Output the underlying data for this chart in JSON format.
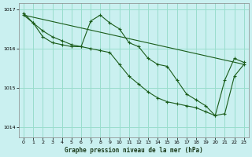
{
  "title": "Graphe pression niveau de la mer (hPa)",
  "background_color": "#caf0f0",
  "grid_color": "#99ddcc",
  "line_color": "#1a5c1a",
  "ylim": [
    1013.75,
    1017.15
  ],
  "yticks": [
    1014,
    1015,
    1016,
    1017
  ],
  "xlim": [
    -0.5,
    23.5
  ],
  "xticks": [
    0,
    1,
    2,
    3,
    4,
    5,
    6,
    7,
    8,
    9,
    10,
    11,
    12,
    13,
    14,
    15,
    16,
    17,
    18,
    19,
    20,
    21,
    22,
    23
  ],
  "series_wavy": {
    "x": [
      0,
      1,
      2,
      3,
      4,
      5,
      6,
      7,
      8,
      9,
      10,
      11,
      12,
      13,
      14,
      15,
      16,
      17,
      18,
      19,
      20,
      21,
      22,
      23
    ],
    "y": [
      1016.9,
      1016.65,
      1016.3,
      1016.15,
      1016.1,
      1016.05,
      1016.05,
      1016.7,
      1016.85,
      1016.65,
      1016.5,
      1016.15,
      1016.05,
      1015.75,
      1015.6,
      1015.55,
      1015.2,
      1014.85,
      1014.7,
      1014.55,
      1014.3,
      1015.2,
      1015.75,
      1015.65
    ]
  },
  "series_smooth": {
    "x": [
      0,
      1,
      2,
      3,
      4,
      5,
      6,
      7,
      8,
      9,
      10,
      11,
      12,
      13,
      14,
      15,
      16,
      17,
      18,
      19,
      20,
      21,
      22,
      23
    ],
    "y": [
      1016.85,
      1016.65,
      1016.45,
      1016.3,
      1016.2,
      1016.1,
      1016.05,
      1016.0,
      1015.95,
      1015.9,
      1015.6,
      1015.3,
      1015.1,
      1014.9,
      1014.75,
      1014.65,
      1014.6,
      1014.55,
      1014.5,
      1014.4,
      1014.3,
      1014.35,
      1015.3,
      1015.6
    ]
  },
  "series_straight": {
    "x": [
      0,
      23
    ],
    "y": [
      1016.85,
      1015.6
    ]
  }
}
